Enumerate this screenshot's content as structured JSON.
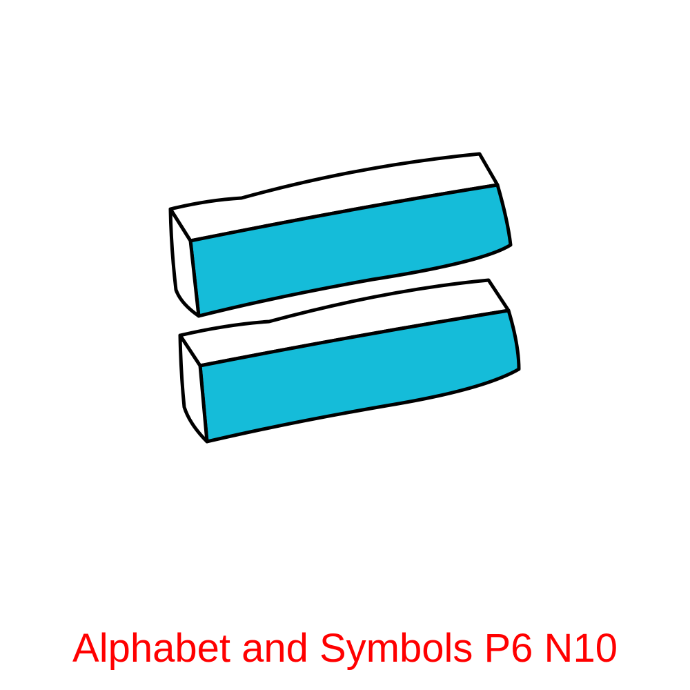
{
  "caption": {
    "text": "Alphabet and Symbols P6 N10",
    "color": "#ff0000"
  },
  "illustration": {
    "icon": "equals-sign-icon",
    "fill_color": "#15bcd9",
    "top_color": "#ffffff",
    "outline_color": "#000000"
  }
}
